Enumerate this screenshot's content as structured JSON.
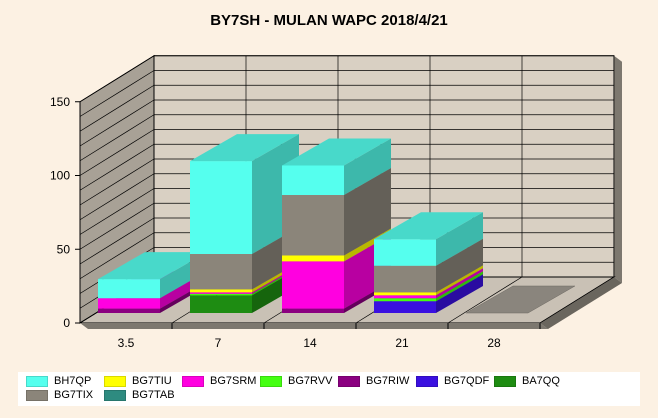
{
  "chart_data": {
    "type": "bar",
    "stacked": true,
    "three_d": true,
    "title": "BY7SH - MULAN WAPC 2018/4/21",
    "categories": [
      "3.5",
      "7",
      "14",
      "21",
      "28"
    ],
    "ylim": [
      0,
      150
    ],
    "yticks": [
      "0",
      "50",
      "100",
      "150"
    ],
    "grid": true,
    "legend_position": "bottom",
    "series": [
      {
        "name": "BG7TAB",
        "color": "#2E8B80",
        "values": [
          0,
          0,
          0,
          0,
          0
        ]
      },
      {
        "name": "BA7QQ",
        "color": "#1E8C12",
        "values": [
          0,
          12,
          0,
          0,
          0
        ]
      },
      {
        "name": "BG7QDF",
        "color": "#3A10E0",
        "values": [
          0,
          0,
          0,
          8,
          0
        ]
      },
      {
        "name": "BG7RIW",
        "color": "#8B0080",
        "values": [
          3,
          0,
          3,
          0,
          0
        ]
      },
      {
        "name": "BG7RVV",
        "color": "#44FF11",
        "values": [
          0,
          1,
          0,
          2,
          0
        ]
      },
      {
        "name": "BG7SRM",
        "color": "#FF00E0",
        "values": [
          7,
          1,
          32,
          2,
          0
        ]
      },
      {
        "name": "BG7TIU",
        "color": "#FFFF00",
        "values": [
          0,
          2,
          4,
          2,
          0
        ]
      },
      {
        "name": "BG7TIX",
        "color": "#8B857A",
        "values": [
          0,
          24,
          41,
          18,
          0
        ]
      },
      {
        "name": "BH7QP",
        "color": "#55FFEE",
        "values": [
          13,
          63,
          20,
          18,
          0
        ]
      }
    ],
    "legend": [
      {
        "name": "BH7QP",
        "color": "#55FFEE"
      },
      {
        "name": "BG7TIU",
        "color": "#FFFF00"
      },
      {
        "name": "BG7SRM",
        "color": "#FF00E0"
      },
      {
        "name": "BG7RVV",
        "color": "#44FF11"
      },
      {
        "name": "BG7RIW",
        "color": "#8B0080"
      },
      {
        "name": "BG7QDF",
        "color": "#3A10E0"
      },
      {
        "name": "BA7QQ",
        "color": "#1E8C12"
      },
      {
        "name": "BG7TIX",
        "color": "#8B857A"
      },
      {
        "name": "BG7TAB",
        "color": "#2E8B80"
      }
    ],
    "colors": {
      "background": "#FCF1E3",
      "back_wall": "#D9D0C3",
      "side_wall": "#A8A196",
      "floor": "#C9C1B5",
      "wall_shadow": "#7D786F"
    }
  }
}
